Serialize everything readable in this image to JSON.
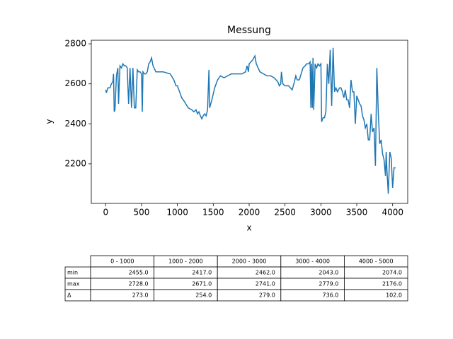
{
  "chart_data": {
    "type": "line",
    "title": "Messung",
    "x_label": "x",
    "y_label": "y",
    "color": "#1f77b4",
    "x": [
      0,
      10,
      30,
      60,
      80,
      100,
      110,
      120,
      130,
      150,
      170,
      180,
      200,
      220,
      240,
      260,
      280,
      300,
      320,
      340,
      360,
      380,
      400,
      420,
      440,
      460,
      480,
      500,
      510,
      520,
      540,
      560,
      580,
      600,
      620,
      640,
      660,
      700,
      800,
      900,
      950,
      980,
      1000,
      1030,
      1060,
      1100,
      1150,
      1200,
      1230,
      1260,
      1280,
      1300,
      1320,
      1340,
      1360,
      1380,
      1400,
      1420,
      1440,
      1450,
      1480,
      1520,
      1560,
      1600,
      1650,
      1700,
      1750,
      1800,
      1900,
      1950,
      1970,
      1990,
      2000,
      2050,
      2080,
      2100,
      2150,
      2200,
      2250,
      2300,
      2350,
      2400,
      2420,
      2440,
      2450,
      2470,
      2500,
      2550,
      2600,
      2630,
      2650,
      2670,
      2700,
      2750,
      2780,
      2800,
      2830,
      2850,
      2860,
      2870,
      2880,
      2890,
      2900,
      2920,
      2940,
      2960,
      2980,
      3000,
      3010,
      3030,
      3050,
      3070,
      3090,
      3110,
      3130,
      3150,
      3170,
      3190,
      3210,
      3230,
      3260,
      3280,
      3300,
      3320,
      3340,
      3360,
      3380,
      3400,
      3420,
      3440,
      3460,
      3480,
      3500,
      3520,
      3540,
      3560,
      3580,
      3600,
      3620,
      3640,
      3660,
      3680,
      3700,
      3720,
      3740,
      3760,
      3780,
      3800,
      3820,
      3840,
      3860,
      3880,
      3900,
      3910,
      3920,
      3940,
      3960,
      3980,
      4000,
      4020,
      4040
    ],
    "values": [
      2570,
      2555,
      2580,
      2580,
      2600,
      2610,
      2650,
      2460,
      2470,
      2640,
      2680,
      2500,
      2690,
      2680,
      2700,
      2690,
      2690,
      2680,
      2500,
      2680,
      2480,
      2680,
      2480,
      2480,
      2670,
      2660,
      2660,
      2650,
      2460,
      2660,
      2650,
      2650,
      2660,
      2700,
      2710,
      2730,
      2690,
      2660,
      2660,
      2650,
      2620,
      2590,
      2590,
      2560,
      2530,
      2510,
      2480,
      2470,
      2460,
      2470,
      2450,
      2460,
      2440,
      2425,
      2440,
      2450,
      2440,
      2470,
      2670,
      2480,
      2520,
      2580,
      2620,
      2640,
      2630,
      2640,
      2650,
      2650,
      2650,
      2660,
      2690,
      2660,
      2700,
      2720,
      2740,
      2700,
      2660,
      2650,
      2640,
      2640,
      2630,
      2610,
      2590,
      2600,
      2660,
      2600,
      2590,
      2590,
      2570,
      2610,
      2640,
      2620,
      2620,
      2680,
      2690,
      2700,
      2700,
      2710,
      2480,
      2700,
      2480,
      2730,
      2470,
      2700,
      2680,
      2700,
      2690,
      2700,
      2410,
      2430,
      2430,
      2460,
      2700,
      2600,
      2770,
      2490,
      2780,
      2560,
      2580,
      2560,
      2580,
      2580,
      2560,
      2530,
      2570,
      2520,
      2520,
      2480,
      2620,
      2560,
      2560,
      2400,
      2540,
      2520,
      2500,
      2490,
      2440,
      2420,
      2380,
      2400,
      2320,
      2320,
      2450,
      2360,
      2380,
      2190,
      2680,
      2460,
      2300,
      2320,
      2250,
      2220,
      2140,
      2260,
      2170,
      2050,
      2260,
      2230,
      2080,
      2180,
      2180
    ],
    "xlim": [
      -200,
      4210
    ],
    "ylim": [
      2002,
      2818
    ],
    "xticks": [
      0,
      500,
      1000,
      1500,
      2000,
      2500,
      3000,
      3500,
      4000
    ],
    "yticks": [
      2200,
      2400,
      2600,
      2800
    ]
  },
  "table": {
    "columns": [
      "0 - 1000",
      "1000 - 2000",
      "2000 - 3000",
      "3000 - 4000",
      "4000 - 5000"
    ],
    "rows": [
      {
        "label": "min",
        "cells": [
          "2455.0",
          "2417.0",
          "2462.0",
          "2043.0",
          "2074.0"
        ]
      },
      {
        "label": "max",
        "cells": [
          "2728.0",
          "2671.0",
          "2741.0",
          "2779.0",
          "2176.0"
        ]
      },
      {
        "label": "Δ",
        "cells": [
          "273.0",
          "254.0",
          "279.0",
          "736.0",
          "102.0"
        ]
      }
    ]
  }
}
